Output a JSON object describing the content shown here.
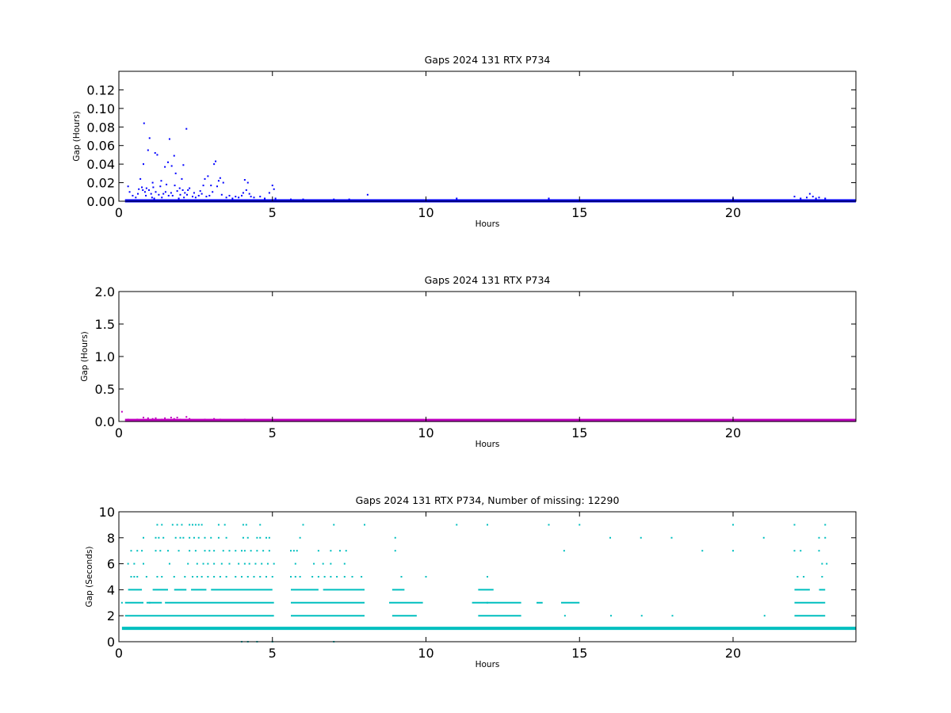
{
  "figure": {
    "background": "#ffffff"
  },
  "chart_data": [
    {
      "type": "scatter",
      "title": "Gaps 2024 131 RTX  P734",
      "xlabel": "Hours",
      "ylabel": "Gap (Hours)",
      "xlim": [
        0,
        24
      ],
      "ylim": [
        0,
        0.14
      ],
      "xticks": [
        "0",
        "5",
        "10",
        "15",
        "20"
      ],
      "yticks": [
        "0.00",
        "0.02",
        "0.04",
        "0.06",
        "0.08",
        "0.10",
        "0.12"
      ],
      "grid": false,
      "color": "#0000ff",
      "baseline": {
        "y": 0.0,
        "x_range": [
          0.2,
          24
        ]
      },
      "points": [
        [
          0.3,
          0.016
        ],
        [
          0.35,
          0.01
        ],
        [
          0.45,
          0.006
        ],
        [
          0.55,
          0.004
        ],
        [
          0.62,
          0.008
        ],
        [
          0.65,
          0.013
        ],
        [
          0.7,
          0.024
        ],
        [
          0.75,
          0.015
        ],
        [
          0.78,
          0.012
        ],
        [
          0.8,
          0.04
        ],
        [
          0.82,
          0.084
        ],
        [
          0.85,
          0.01
        ],
        [
          0.88,
          0.006
        ],
        [
          0.9,
          0.014
        ],
        [
          0.95,
          0.055
        ],
        [
          0.98,
          0.012
        ],
        [
          1.0,
          0.068
        ],
        [
          1.05,
          0.008
        ],
        [
          1.08,
          0.004
        ],
        [
          1.1,
          0.02
        ],
        [
          1.12,
          0.015
        ],
        [
          1.15,
          0.003
        ],
        [
          1.18,
          0.052
        ],
        [
          1.2,
          0.01
        ],
        [
          1.25,
          0.05
        ],
        [
          1.3,
          0.007
        ],
        [
          1.35,
          0.016
        ],
        [
          1.38,
          0.022
        ],
        [
          1.4,
          0.004
        ],
        [
          1.45,
          0.008
        ],
        [
          1.5,
          0.037
        ],
        [
          1.52,
          0.01
        ],
        [
          1.55,
          0.018
        ],
        [
          1.6,
          0.042
        ],
        [
          1.62,
          0.006
        ],
        [
          1.65,
          0.067
        ],
        [
          1.7,
          0.009
        ],
        [
          1.72,
          0.038
        ],
        [
          1.75,
          0.006
        ],
        [
          1.8,
          0.049
        ],
        [
          1.82,
          0.017
        ],
        [
          1.85,
          0.03
        ],
        [
          1.9,
          0.011
        ],
        [
          1.95,
          0.003
        ],
        [
          1.98,
          0.014
        ],
        [
          2.0,
          0.007
        ],
        [
          2.05,
          0.024
        ],
        [
          2.08,
          0.012
        ],
        [
          2.1,
          0.039
        ],
        [
          2.12,
          0.004
        ],
        [
          2.15,
          0.009
        ],
        [
          2.2,
          0.078
        ],
        [
          2.22,
          0.007
        ],
        [
          2.25,
          0.012
        ],
        [
          2.3,
          0.014
        ],
        [
          2.4,
          0.005
        ],
        [
          2.45,
          0.009
        ],
        [
          2.5,
          0.004
        ],
        [
          2.6,
          0.006
        ],
        [
          2.65,
          0.011
        ],
        [
          2.7,
          0.008
        ],
        [
          2.75,
          0.017
        ],
        [
          2.8,
          0.024
        ],
        [
          2.85,
          0.005
        ],
        [
          2.9,
          0.027
        ],
        [
          2.95,
          0.006
        ],
        [
          3.0,
          0.017
        ],
        [
          3.05,
          0.01
        ],
        [
          3.1,
          0.04
        ],
        [
          3.15,
          0.043
        ],
        [
          3.2,
          0.016
        ],
        [
          3.25,
          0.022
        ],
        [
          3.3,
          0.025
        ],
        [
          3.35,
          0.007
        ],
        [
          3.4,
          0.02
        ],
        [
          3.5,
          0.004
        ],
        [
          3.6,
          0.006
        ],
        [
          3.7,
          0.003
        ],
        [
          3.8,
          0.005
        ],
        [
          3.9,
          0.004
        ],
        [
          4.0,
          0.006
        ],
        [
          4.05,
          0.009
        ],
        [
          4.1,
          0.023
        ],
        [
          4.15,
          0.012
        ],
        [
          4.2,
          0.02
        ],
        [
          4.25,
          0.008
        ],
        [
          4.3,
          0.005
        ],
        [
          4.4,
          0.004
        ],
        [
          4.6,
          0.005
        ],
        [
          4.75,
          0.003
        ],
        [
          4.9,
          0.009
        ],
        [
          5.0,
          0.017
        ],
        [
          5.05,
          0.013
        ],
        [
          5.1,
          0.003
        ],
        [
          5.6,
          0.002
        ],
        [
          6.0,
          0.002
        ],
        [
          7.0,
          0.002
        ],
        [
          7.5,
          0.002
        ],
        [
          8.1,
          0.007
        ],
        [
          11.0,
          0.003
        ],
        [
          14.0,
          0.003
        ],
        [
          20.0,
          0.003
        ],
        [
          22.0,
          0.005
        ],
        [
          22.2,
          0.003
        ],
        [
          22.4,
          0.004
        ],
        [
          22.5,
          0.008
        ],
        [
          22.6,
          0.005
        ],
        [
          22.7,
          0.003
        ],
        [
          22.8,
          0.004
        ],
        [
          23.0,
          0.003
        ]
      ]
    },
    {
      "type": "scatter",
      "title": "Gaps 2024 131 RTX  P734",
      "xlabel": "Hours",
      "ylabel": "Gap (Hours)",
      "xlim": [
        0,
        24
      ],
      "ylim": [
        0,
        2.0
      ],
      "xticks": [
        "0",
        "5",
        "10",
        "15",
        "20"
      ],
      "yticks": [
        "0.0",
        "0.5",
        "1.0",
        "1.5",
        "2.0"
      ],
      "grid": false,
      "color": "#bf00bf",
      "baseline": {
        "y": 0.01,
        "x_range": [
          0.2,
          24
        ]
      },
      "points": [
        [
          0.1,
          0.15
        ],
        [
          0.3,
          0.03
        ],
        [
          0.6,
          0.03
        ],
        [
          0.8,
          0.06
        ],
        [
          0.95,
          0.05
        ],
        [
          1.1,
          0.04
        ],
        [
          1.2,
          0.05
        ],
        [
          1.4,
          0.03
        ],
        [
          1.5,
          0.05
        ],
        [
          1.6,
          0.03
        ],
        [
          1.7,
          0.06
        ],
        [
          1.8,
          0.04
        ],
        [
          1.9,
          0.06
        ],
        [
          2.0,
          0.03
        ],
        [
          2.2,
          0.07
        ],
        [
          2.3,
          0.04
        ],
        [
          2.8,
          0.03
        ],
        [
          3.1,
          0.04
        ],
        [
          3.3,
          0.03
        ],
        [
          4.1,
          0.03
        ]
      ]
    },
    {
      "type": "scatter",
      "title": "Gaps 2024 131 RTX  P734, Number of missing: 12290",
      "xlabel": "Hours",
      "ylabel": "Gap (Seconds)",
      "xlim": [
        0,
        24
      ],
      "ylim": [
        0,
        10
      ],
      "xticks": [
        "0",
        "5",
        "10",
        "15",
        "20"
      ],
      "yticks": [
        "0",
        "2",
        "4",
        "6",
        "8",
        "10"
      ],
      "grid": false,
      "color": "#00bfbf",
      "baseline": {
        "y": 1,
        "x_range": [
          0.1,
          24
        ]
      },
      "rows": [
        {
          "y": 9,
          "x": [
            1.25,
            1.4,
            1.75,
            1.9,
            2.05,
            2.3,
            2.4,
            2.5,
            2.6,
            2.7,
            3.25,
            3.45,
            4.05,
            4.15,
            4.6,
            6.0,
            7.0,
            8.0,
            11.0,
            12.0,
            14.0,
            15.0,
            20.0,
            22.0,
            23.0
          ]
        },
        {
          "y": 8,
          "x": [
            0.8,
            1.2,
            1.3,
            1.45,
            1.85,
            2.0,
            2.1,
            2.3,
            2.45,
            2.6,
            2.8,
            3.0,
            3.25,
            3.5,
            4.05,
            4.2,
            4.5,
            4.6,
            4.8,
            4.9,
            5.9,
            9.0,
            16.0,
            17.0,
            18.0,
            21.0,
            22.8,
            23.0
          ]
        },
        {
          "y": 7,
          "x": [
            0.4,
            0.6,
            0.75,
            1.2,
            1.35,
            1.6,
            1.95,
            2.3,
            2.5,
            2.8,
            2.95,
            3.1,
            3.4,
            3.6,
            3.8,
            4.0,
            4.1,
            4.3,
            4.5,
            4.7,
            4.9,
            5.6,
            5.7,
            5.8,
            6.5,
            6.9,
            7.2,
            7.4,
            9.0,
            14.5,
            19.0,
            20.0,
            22.0,
            22.2,
            22.8
          ]
        },
        {
          "y": 6,
          "x": [
            0.3,
            0.5,
            0.8,
            1.65,
            2.25,
            2.55,
            2.75,
            2.9,
            3.1,
            3.35,
            3.6,
            3.9,
            4.1,
            4.25,
            4.45,
            4.65,
            4.85,
            5.05,
            5.75,
            6.35,
            6.65,
            6.9,
            7.35,
            22.9,
            23.05
          ]
        },
        {
          "y": 5,
          "x": [
            0.4,
            0.5,
            0.6,
            0.9,
            1.25,
            1.4,
            1.8,
            2.15,
            2.4,
            2.55,
            2.7,
            2.9,
            3.1,
            3.3,
            3.5,
            3.8,
            4.0,
            4.2,
            4.4,
            4.6,
            4.8,
            5.0,
            5.6,
            5.75,
            5.9,
            6.3,
            6.5,
            6.7,
            6.9,
            7.1,
            7.35,
            7.6,
            7.9,
            9.2,
            10.0,
            12.0,
            22.1,
            22.3,
            22.9
          ]
        },
        {
          "y": 3,
          "x": [
            0.1,
            1.0,
            12.0
          ]
        },
        {
          "y": 0,
          "x": [
            4.0,
            4.2,
            4.5,
            5.0,
            7.0
          ]
        }
      ],
      "segments": [
        {
          "y": 4,
          "x_ranges": [
            [
              0.3,
              0.75
            ],
            [
              1.1,
              1.6
            ],
            [
              1.8,
              2.2
            ],
            [
              2.35,
              2.85
            ],
            [
              3.0,
              5.0
            ],
            [
              5.6,
              6.5
            ],
            [
              6.65,
              8.0
            ],
            [
              8.9,
              9.3
            ],
            [
              11.7,
              12.2
            ],
            [
              22.0,
              22.5
            ],
            [
              22.8,
              23.0
            ]
          ]
        },
        {
          "y": 3,
          "x_ranges": [
            [
              0.2,
              0.8
            ],
            [
              0.9,
              1.4
            ],
            [
              1.5,
              5.05
            ],
            [
              5.6,
              8.0
            ],
            [
              8.8,
              9.9
            ],
            [
              11.5,
              13.1
            ],
            [
              13.6,
              13.8
            ],
            [
              14.4,
              15.0
            ],
            [
              22.0,
              23.0
            ]
          ]
        },
        {
          "y": 2,
          "x_ranges": [
            [
              0.2,
              5.05
            ],
            [
              5.6,
              8.0
            ],
            [
              8.9,
              9.7
            ],
            [
              11.7,
              13.1
            ],
            [
              14.5,
              14.5
            ],
            [
              16.0,
              16.0
            ],
            [
              17.0,
              17.0
            ],
            [
              18.0,
              18.0
            ],
            [
              21.0,
              21.0
            ],
            [
              22.0,
              23.0
            ]
          ]
        }
      ]
    }
  ]
}
